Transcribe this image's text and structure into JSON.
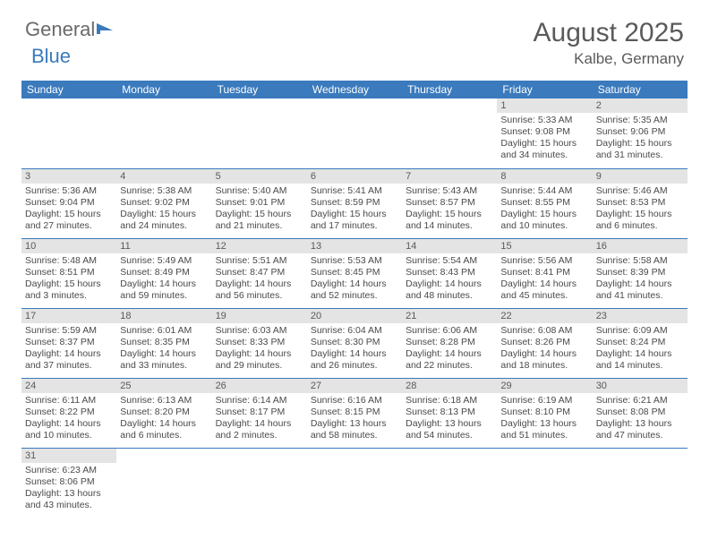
{
  "logo": {
    "part1": "General",
    "part2": "Blue"
  },
  "title": "August 2025",
  "location": "Kalbe, Germany",
  "colors": {
    "header_bg": "#3a7abd",
    "header_text": "#ffffff",
    "daynum_bg": "#e4e4e4",
    "text": "#4a4a4a",
    "rule": "#3a7abd"
  },
  "day_headers": [
    "Sunday",
    "Monday",
    "Tuesday",
    "Wednesday",
    "Thursday",
    "Friday",
    "Saturday"
  ],
  "weeks": [
    [
      null,
      null,
      null,
      null,
      null,
      {
        "n": "1",
        "sr": "Sunrise: 5:33 AM",
        "ss": "Sunset: 9:08 PM",
        "d1": "Daylight: 15 hours",
        "d2": "and 34 minutes."
      },
      {
        "n": "2",
        "sr": "Sunrise: 5:35 AM",
        "ss": "Sunset: 9:06 PM",
        "d1": "Daylight: 15 hours",
        "d2": "and 31 minutes."
      }
    ],
    [
      {
        "n": "3",
        "sr": "Sunrise: 5:36 AM",
        "ss": "Sunset: 9:04 PM",
        "d1": "Daylight: 15 hours",
        "d2": "and 27 minutes."
      },
      {
        "n": "4",
        "sr": "Sunrise: 5:38 AM",
        "ss": "Sunset: 9:02 PM",
        "d1": "Daylight: 15 hours",
        "d2": "and 24 minutes."
      },
      {
        "n": "5",
        "sr": "Sunrise: 5:40 AM",
        "ss": "Sunset: 9:01 PM",
        "d1": "Daylight: 15 hours",
        "d2": "and 21 minutes."
      },
      {
        "n": "6",
        "sr": "Sunrise: 5:41 AM",
        "ss": "Sunset: 8:59 PM",
        "d1": "Daylight: 15 hours",
        "d2": "and 17 minutes."
      },
      {
        "n": "7",
        "sr": "Sunrise: 5:43 AM",
        "ss": "Sunset: 8:57 PM",
        "d1": "Daylight: 15 hours",
        "d2": "and 14 minutes."
      },
      {
        "n": "8",
        "sr": "Sunrise: 5:44 AM",
        "ss": "Sunset: 8:55 PM",
        "d1": "Daylight: 15 hours",
        "d2": "and 10 minutes."
      },
      {
        "n": "9",
        "sr": "Sunrise: 5:46 AM",
        "ss": "Sunset: 8:53 PM",
        "d1": "Daylight: 15 hours",
        "d2": "and 6 minutes."
      }
    ],
    [
      {
        "n": "10",
        "sr": "Sunrise: 5:48 AM",
        "ss": "Sunset: 8:51 PM",
        "d1": "Daylight: 15 hours",
        "d2": "and 3 minutes."
      },
      {
        "n": "11",
        "sr": "Sunrise: 5:49 AM",
        "ss": "Sunset: 8:49 PM",
        "d1": "Daylight: 14 hours",
        "d2": "and 59 minutes."
      },
      {
        "n": "12",
        "sr": "Sunrise: 5:51 AM",
        "ss": "Sunset: 8:47 PM",
        "d1": "Daylight: 14 hours",
        "d2": "and 56 minutes."
      },
      {
        "n": "13",
        "sr": "Sunrise: 5:53 AM",
        "ss": "Sunset: 8:45 PM",
        "d1": "Daylight: 14 hours",
        "d2": "and 52 minutes."
      },
      {
        "n": "14",
        "sr": "Sunrise: 5:54 AM",
        "ss": "Sunset: 8:43 PM",
        "d1": "Daylight: 14 hours",
        "d2": "and 48 minutes."
      },
      {
        "n": "15",
        "sr": "Sunrise: 5:56 AM",
        "ss": "Sunset: 8:41 PM",
        "d1": "Daylight: 14 hours",
        "d2": "and 45 minutes."
      },
      {
        "n": "16",
        "sr": "Sunrise: 5:58 AM",
        "ss": "Sunset: 8:39 PM",
        "d1": "Daylight: 14 hours",
        "d2": "and 41 minutes."
      }
    ],
    [
      {
        "n": "17",
        "sr": "Sunrise: 5:59 AM",
        "ss": "Sunset: 8:37 PM",
        "d1": "Daylight: 14 hours",
        "d2": "and 37 minutes."
      },
      {
        "n": "18",
        "sr": "Sunrise: 6:01 AM",
        "ss": "Sunset: 8:35 PM",
        "d1": "Daylight: 14 hours",
        "d2": "and 33 minutes."
      },
      {
        "n": "19",
        "sr": "Sunrise: 6:03 AM",
        "ss": "Sunset: 8:33 PM",
        "d1": "Daylight: 14 hours",
        "d2": "and 29 minutes."
      },
      {
        "n": "20",
        "sr": "Sunrise: 6:04 AM",
        "ss": "Sunset: 8:30 PM",
        "d1": "Daylight: 14 hours",
        "d2": "and 26 minutes."
      },
      {
        "n": "21",
        "sr": "Sunrise: 6:06 AM",
        "ss": "Sunset: 8:28 PM",
        "d1": "Daylight: 14 hours",
        "d2": "and 22 minutes."
      },
      {
        "n": "22",
        "sr": "Sunrise: 6:08 AM",
        "ss": "Sunset: 8:26 PM",
        "d1": "Daylight: 14 hours",
        "d2": "and 18 minutes."
      },
      {
        "n": "23",
        "sr": "Sunrise: 6:09 AM",
        "ss": "Sunset: 8:24 PM",
        "d1": "Daylight: 14 hours",
        "d2": "and 14 minutes."
      }
    ],
    [
      {
        "n": "24",
        "sr": "Sunrise: 6:11 AM",
        "ss": "Sunset: 8:22 PM",
        "d1": "Daylight: 14 hours",
        "d2": "and 10 minutes."
      },
      {
        "n": "25",
        "sr": "Sunrise: 6:13 AM",
        "ss": "Sunset: 8:20 PM",
        "d1": "Daylight: 14 hours",
        "d2": "and 6 minutes."
      },
      {
        "n": "26",
        "sr": "Sunrise: 6:14 AM",
        "ss": "Sunset: 8:17 PM",
        "d1": "Daylight: 14 hours",
        "d2": "and 2 minutes."
      },
      {
        "n": "27",
        "sr": "Sunrise: 6:16 AM",
        "ss": "Sunset: 8:15 PM",
        "d1": "Daylight: 13 hours",
        "d2": "and 58 minutes."
      },
      {
        "n": "28",
        "sr": "Sunrise: 6:18 AM",
        "ss": "Sunset: 8:13 PM",
        "d1": "Daylight: 13 hours",
        "d2": "and 54 minutes."
      },
      {
        "n": "29",
        "sr": "Sunrise: 6:19 AM",
        "ss": "Sunset: 8:10 PM",
        "d1": "Daylight: 13 hours",
        "d2": "and 51 minutes."
      },
      {
        "n": "30",
        "sr": "Sunrise: 6:21 AM",
        "ss": "Sunset: 8:08 PM",
        "d1": "Daylight: 13 hours",
        "d2": "and 47 minutes."
      }
    ],
    [
      {
        "n": "31",
        "sr": "Sunrise: 6:23 AM",
        "ss": "Sunset: 8:06 PM",
        "d1": "Daylight: 13 hours",
        "d2": "and 43 minutes."
      },
      null,
      null,
      null,
      null,
      null,
      null
    ]
  ]
}
